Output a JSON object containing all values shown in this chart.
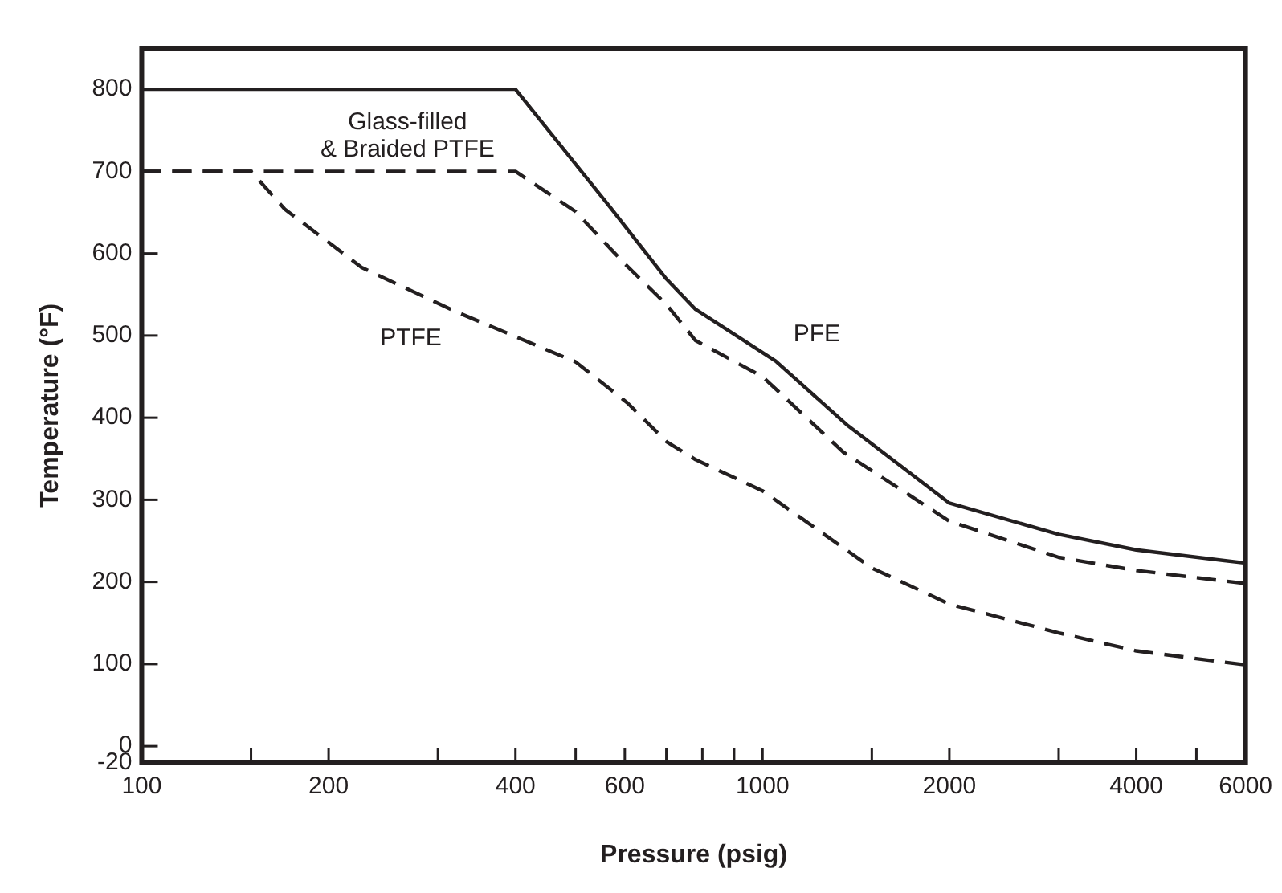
{
  "chart_data": {
    "type": "line",
    "xlabel": "Pressure (psig)",
    "ylabel": "Temperature (°F)",
    "log": "x",
    "xlim": [
      100,
      6000
    ],
    "ylim": [
      -20,
      850
    ],
    "xticks": [
      100,
      {
        "value": 150,
        "label": null
      },
      200,
      {
        "value": 300,
        "label": null
      },
      400,
      {
        "value": 500,
        "label": null
      },
      600,
      {
        "value": 700,
        "label": null
      },
      {
        "value": 800,
        "label": null
      },
      {
        "value": 900,
        "label": null
      },
      1000,
      {
        "value": 1500,
        "label": null
      },
      2000,
      {
        "value": 3000,
        "label": null
      },
      4000,
      {
        "value": 5000,
        "label": null
      },
      6000
    ],
    "yticks": [
      -20,
      0,
      100,
      200,
      300,
      400,
      500,
      600,
      700,
      800
    ],
    "grid": false,
    "legend": false,
    "marker": "none",
    "series": [
      {
        "name": "PTFE",
        "color": "#231f20",
        "line_style": "dashed",
        "x": [
          100,
          150,
          170,
          226,
          321,
          500,
          606,
          700,
          780,
          1000,
          1500,
          2000,
          3000,
          4000,
          6000
        ],
        "values": [
          700,
          700,
          654,
          583,
          529,
          468,
          418,
          371,
          349,
          311,
          217,
          173,
          138,
          116,
          99
        ]
      },
      {
        "name": "PFE",
        "color": "#231f20",
        "line_style": "solid",
        "x": [
          100,
          400,
          562,
          700,
          780,
          1050,
          1374,
          2000,
          3000,
          4000,
          6000
        ],
        "values": [
          800,
          800,
          661,
          569,
          532,
          469,
          390,
          296,
          258,
          239,
          223
        ]
      },
      {
        "name": "Glass-filled & Braided PTFE",
        "color": "#231f20",
        "line_style": "dashed",
        "x": [
          100,
          400,
          500,
          597,
          700,
          780,
          1000,
          1350,
          2000,
          3000,
          4000,
          6000
        ],
        "values": [
          700,
          700,
          651,
          589,
          538,
          494,
          450,
          358,
          274,
          230,
          214,
          198
        ]
      }
    ]
  }
}
